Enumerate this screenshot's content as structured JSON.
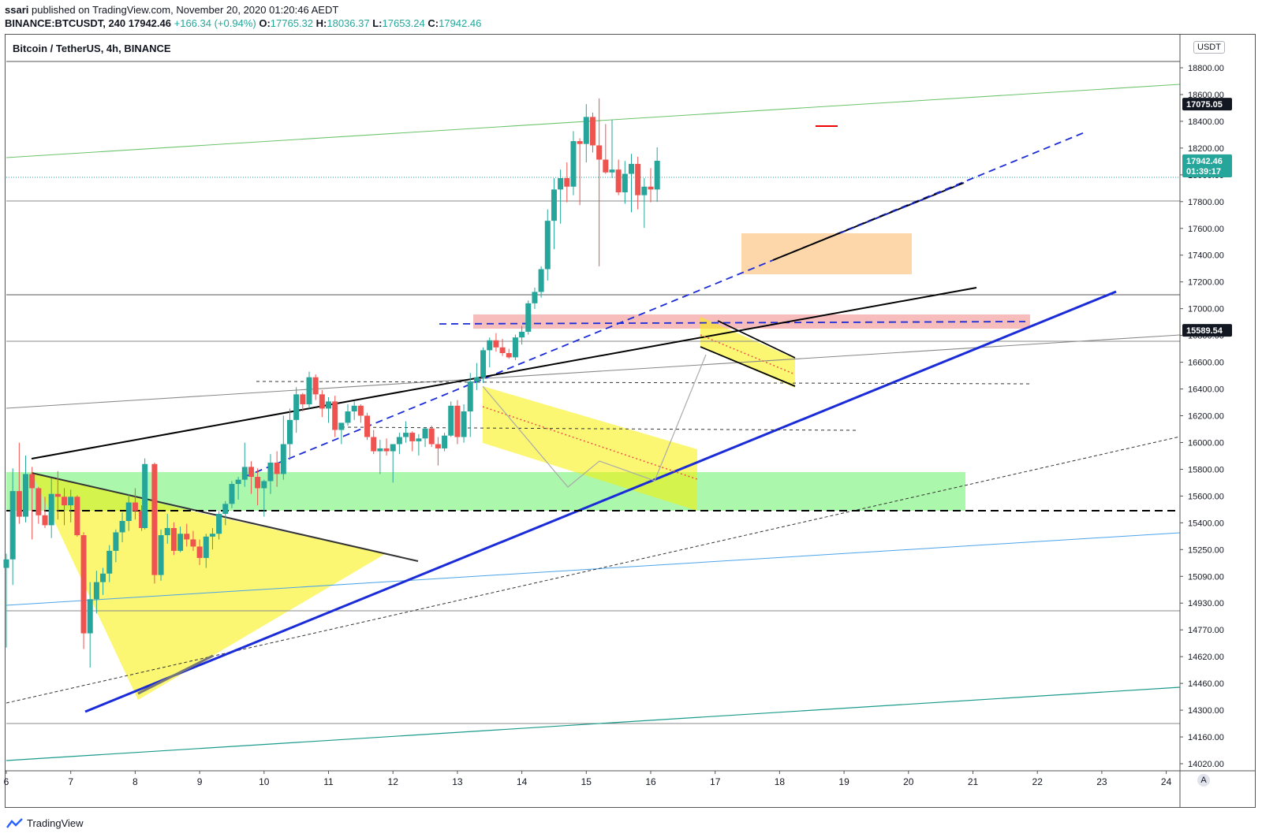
{
  "header": {
    "author": "ssari",
    "published_text": "published on TradingView.com, November 20, 2020 01:20:46 AEDT",
    "symbol": "BINANCE:BTCUSDT, 240",
    "last": "17942.46",
    "change": "+166.34 (+0.94%)",
    "o_label": "O:",
    "o_value": "17765.32",
    "h_label": "H:",
    "h_value": "18036.37",
    "l_label": "L:",
    "l_value": "17653.24",
    "c_label": "C:",
    "c_value": "17942.46"
  },
  "legend_title": "Bitcoin / TetherUS, 4h, BINANCE",
  "currency_badge": "USDT",
  "auto_button": "A",
  "footer_brand": "TradingView",
  "colors": {
    "up": "#26a69a",
    "down": "#ef5350",
    "blue": "#1a2bd8",
    "price_tag": "#26a69a",
    "dark_tag": "#131722"
  },
  "chart_data": {
    "type": "candlestick",
    "title": "",
    "xlabel": "",
    "ylabel": "",
    "grid": false,
    "x_axis": {
      "unit": "day of November 2020",
      "range": [
        6,
        24.2
      ],
      "ticks": [
        "6",
        "7",
        "8",
        "9",
        "10",
        "11",
        "12",
        "13",
        "14",
        "15",
        "16",
        "17",
        "18",
        "19",
        "20",
        "21",
        "22",
        "23",
        "24"
      ]
    },
    "y_axis": {
      "ticks": [
        "18800.00",
        "18600.00",
        "18400.00",
        "18200.00",
        "18000.00",
        "17800.00",
        "17600.00",
        "17400.00",
        "17200.00",
        "17000.00",
        "16800.00",
        "16600.00",
        "16400.00",
        "16200.00",
        "16000.00",
        "15800.00",
        "15600.00",
        "15400.00",
        "15250.00",
        "15090.00",
        "14930.00",
        "14770.00",
        "14620.00",
        "14460.00",
        "14300.00",
        "14160.00",
        "14020.00"
      ],
      "price_labels": [
        {
          "text": "17075.05",
          "price": 18340,
          "style": "dark"
        },
        {
          "text": "17942.46",
          "price": 17942.46,
          "style": "green"
        },
        {
          "text": "01:39:17",
          "price": 17870,
          "style": "green"
        },
        {
          "text": "15589.54",
          "price": 16750,
          "style": "dark"
        }
      ]
    },
    "candles": [
      [
        6.0,
        15080,
        15180,
        14520,
        15140
      ],
      [
        6.1,
        15140,
        15780,
        14960,
        15620
      ],
      [
        6.2,
        15620,
        15960,
        15390,
        15440
      ],
      [
        6.3,
        15440,
        15870,
        15400,
        15740
      ],
      [
        6.4,
        15740,
        15790,
        15280,
        15640
      ],
      [
        6.5,
        15640,
        15650,
        15390,
        15450
      ],
      [
        6.6,
        15450,
        15580,
        15360,
        15380
      ],
      [
        6.7,
        15380,
        15710,
        15290,
        15600
      ],
      [
        6.8,
        15600,
        15760,
        15420,
        15580
      ],
      [
        6.9,
        15580,
        15640,
        15380,
        15520
      ],
      [
        7.0,
        15520,
        15630,
        15400,
        15580
      ],
      [
        7.1,
        15580,
        15590,
        15300,
        15310
      ],
      [
        7.2,
        15310,
        15330,
        14510,
        14620
      ],
      [
        7.3,
        14620,
        14980,
        14380,
        14860
      ],
      [
        7.4,
        14860,
        15060,
        14760,
        14980
      ],
      [
        7.5,
        14980,
        15080,
        14890,
        15040
      ],
      [
        7.6,
        15040,
        15240,
        14980,
        15200
      ],
      [
        7.7,
        15200,
        15350,
        15120,
        15330
      ],
      [
        7.8,
        15330,
        15470,
        15260,
        15410
      ],
      [
        7.9,
        15410,
        15600,
        15340,
        15540
      ],
      [
        8.0,
        15540,
        15640,
        15420,
        15480
      ],
      [
        8.1,
        15480,
        15520,
        15340,
        15360
      ],
      [
        8.15,
        15360,
        15850,
        15350,
        15810
      ],
      [
        8.3,
        15810,
        15820,
        14970,
        15030
      ],
      [
        8.4,
        15030,
        15350,
        14990,
        15310
      ],
      [
        8.5,
        15310,
        15460,
        15250,
        15360
      ],
      [
        8.6,
        15360,
        15400,
        15170,
        15200
      ],
      [
        8.7,
        15200,
        15370,
        15190,
        15320
      ],
      [
        8.8,
        15320,
        15390,
        15230,
        15280
      ],
      [
        8.9,
        15280,
        15340,
        15200,
        15230
      ],
      [
        9.0,
        15230,
        15280,
        15100,
        15150
      ],
      [
        9.1,
        15150,
        15320,
        15080,
        15300
      ],
      [
        9.2,
        15300,
        15360,
        15210,
        15320
      ],
      [
        9.3,
        15320,
        15480,
        15280,
        15460
      ],
      [
        9.4,
        15460,
        15550,
        15380,
        15530
      ],
      [
        9.5,
        15530,
        15690,
        15500,
        15670
      ],
      [
        9.6,
        15670,
        15720,
        15560,
        15700
      ],
      [
        9.7,
        15700,
        15960,
        15650,
        15790
      ],
      [
        9.8,
        15790,
        15830,
        15600,
        15720
      ],
      [
        9.9,
        15720,
        15780,
        15520,
        15640
      ],
      [
        10.0,
        15640,
        15700,
        15440,
        15690
      ],
      [
        10.1,
        15690,
        15880,
        15600,
        15820
      ],
      [
        10.2,
        15820,
        15900,
        15650,
        15740
      ],
      [
        10.3,
        15740,
        16150,
        15700,
        15950
      ],
      [
        10.4,
        15950,
        16200,
        15840,
        16120
      ],
      [
        10.5,
        16120,
        16350,
        16030,
        16300
      ],
      [
        10.6,
        16300,
        16310,
        16180,
        16230
      ],
      [
        10.7,
        16230,
        16460,
        16200,
        16420
      ],
      [
        10.8,
        16420,
        16440,
        16260,
        16300
      ],
      [
        10.9,
        16300,
        16330,
        16140,
        16200
      ],
      [
        11.0,
        16200,
        16280,
        16100,
        16250
      ],
      [
        11.1,
        16250,
        16290,
        16000,
        16050
      ],
      [
        11.2,
        16050,
        16100,
        15950,
        16100
      ],
      [
        11.3,
        16100,
        16230,
        16080,
        16180
      ],
      [
        11.4,
        16180,
        16250,
        16120,
        16220
      ],
      [
        11.5,
        16220,
        16230,
        16100,
        16150
      ],
      [
        11.6,
        16150,
        16170,
        15980,
        16000
      ],
      [
        11.7,
        16000,
        16050,
        15880,
        15900
      ],
      [
        11.8,
        15900,
        15980,
        15740,
        15920
      ],
      [
        11.9,
        15920,
        15990,
        15870,
        15900
      ],
      [
        12.0,
        15900,
        15950,
        15680,
        15950
      ],
      [
        12.1,
        15950,
        16030,
        15880,
        16000
      ],
      [
        12.2,
        16000,
        16110,
        15960,
        16030
      ],
      [
        12.3,
        16030,
        16040,
        15900,
        15970
      ],
      [
        12.4,
        15970,
        16020,
        15870,
        15990
      ],
      [
        12.5,
        15990,
        16070,
        15930,
        16060
      ],
      [
        12.6,
        16060,
        16080,
        15930,
        15950
      ],
      [
        12.7,
        15950,
        16000,
        15800,
        15920
      ],
      [
        12.8,
        15920,
        16030,
        15900,
        16010
      ],
      [
        12.9,
        16010,
        16250,
        16000,
        16220
      ],
      [
        13.0,
        16220,
        16260,
        15950,
        16000
      ],
      [
        13.1,
        16000,
        16230,
        15960,
        16180
      ],
      [
        13.2,
        16180,
        16450,
        16000,
        16390
      ],
      [
        13.3,
        16390,
        16520,
        16330,
        16420
      ],
      [
        13.4,
        16420,
        16630,
        16380,
        16610
      ],
      [
        13.5,
        16610,
        16700,
        16490,
        16680
      ],
      [
        13.6,
        16680,
        16730,
        16600,
        16630
      ],
      [
        13.7,
        16630,
        16690,
        16570,
        16590
      ],
      [
        13.8,
        16590,
        16620,
        16550,
        16560
      ],
      [
        13.9,
        16560,
        16720,
        16540,
        16700
      ],
      [
        14.0,
        16700,
        16780,
        16650,
        16740
      ],
      [
        14.1,
        16740,
        16960,
        16720,
        16940
      ],
      [
        14.2,
        16940,
        17050,
        16900,
        17020
      ],
      [
        14.3,
        17020,
        17200,
        16980,
        17180
      ],
      [
        14.4,
        17180,
        17600,
        17100,
        17520
      ],
      [
        14.5,
        17520,
        17820,
        17320,
        17740
      ],
      [
        14.6,
        17740,
        17880,
        17500,
        17820
      ],
      [
        14.7,
        17820,
        17930,
        17650,
        17760
      ],
      [
        14.8,
        17760,
        18150,
        17700,
        18080
      ],
      [
        14.9,
        18080,
        18100,
        17630,
        18060
      ],
      [
        15.0,
        18060,
        18340,
        17930,
        18250
      ],
      [
        15.1,
        18250,
        18280,
        18000,
        18050
      ],
      [
        15.2,
        18050,
        18380,
        17200,
        17950
      ],
      [
        15.3,
        17950,
        18200,
        17850,
        17860
      ],
      [
        15.4,
        17860,
        18230,
        17820,
        17880
      ],
      [
        15.5,
        17880,
        17950,
        17700,
        17720
      ],
      [
        15.6,
        17720,
        17940,
        17640,
        17850
      ],
      [
        15.7,
        17850,
        17990,
        17580,
        17920
      ],
      [
        15.8,
        17920,
        17970,
        17600,
        17700
      ],
      [
        15.9,
        17700,
        17820,
        17470,
        17760
      ],
      [
        16.0,
        17760,
        17890,
        17650,
        17740
      ],
      [
        16.1,
        17740,
        18036,
        17653,
        17942
      ]
    ]
  }
}
